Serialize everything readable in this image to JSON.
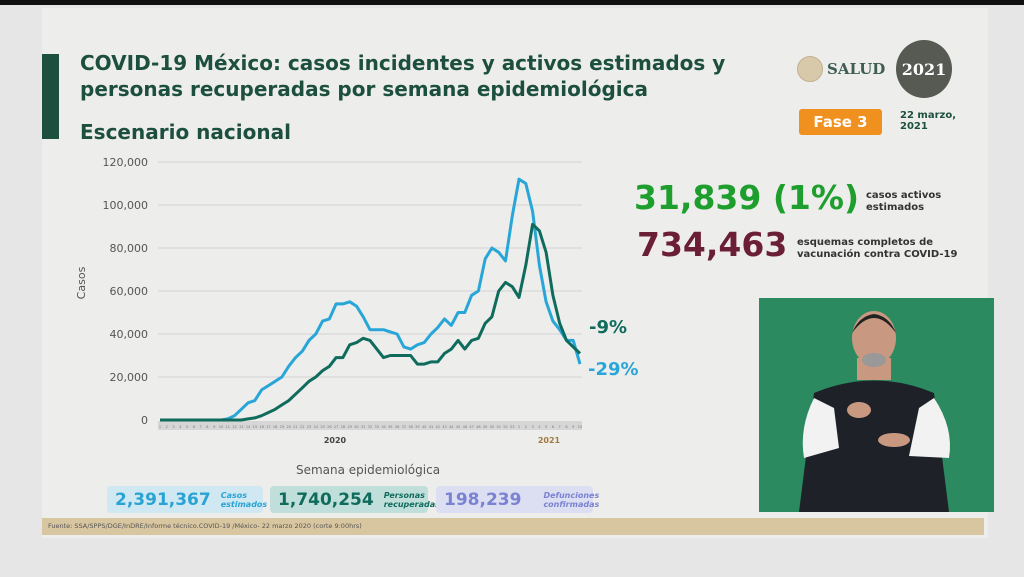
{
  "header": {
    "title_line1": "COVID-19 México: casos incidentes y activos estimados y",
    "title_line2": "personas recuperadas por semana epidemiológica",
    "subtitle": "Escenario nacional",
    "logo_salud": "SALUD",
    "logo_2021": "2021",
    "phase": "Fase 3",
    "date_line1": "22 marzo,",
    "date_line2": "2021"
  },
  "kpis": {
    "active": {
      "value": "31,839 (1%)",
      "label_line1": "casos activos",
      "label_line2": "estimados",
      "color": "#1e9e2d"
    },
    "vaccination": {
      "value": "734,463",
      "label_line1": "esquemas completos de",
      "label_line2": "vacunación contra COVID-19",
      "color": "#6b1f37"
    }
  },
  "summary": [
    {
      "value": "2,391,367",
      "label_line1": "Casos",
      "label_line2": "estimados",
      "color": "#2aa3d4"
    },
    {
      "value": "1,740,254",
      "label_line1": "Personas",
      "label_line2": "recuperadas",
      "color": "#0f6b5c"
    },
    {
      "value": "198,239",
      "label_line1": "Defunciones",
      "label_line2": "confirmadas",
      "color": "#7a82d2"
    }
  ],
  "footer": "Fuente: SSA/SPPS/DGE/InDRE/Informe técnico.COVID-19 /México- 22 marzo 2020 (corte 9:00hrs)",
  "chart_data": {
    "type": "line",
    "xlabel": "Semana epidemiológica",
    "ylabel": "Casos",
    "ylim": [
      0,
      120000
    ],
    "yticks": [
      "0",
      "20,000",
      "40,000",
      "60,000",
      "80,000",
      "100,000",
      "120,000"
    ],
    "grid": true,
    "year_labels": [
      "2020",
      "2021"
    ],
    "x": [
      "1",
      "2",
      "3",
      "4",
      "5",
      "6",
      "7",
      "8",
      "9",
      "10",
      "11",
      "12",
      "13",
      "14",
      "15",
      "16",
      "17",
      "18",
      "19",
      "20",
      "21",
      "22",
      "23",
      "24",
      "25",
      "26",
      "27",
      "28",
      "29",
      "30",
      "31",
      "32",
      "33",
      "34",
      "35",
      "36",
      "37",
      "38",
      "39",
      "40",
      "41",
      "42",
      "43",
      "44",
      "45",
      "46",
      "47",
      "48",
      "49",
      "50",
      "51",
      "52",
      "53",
      "1",
      "2",
      "3",
      "4",
      "5",
      "6",
      "7",
      "8",
      "9",
      "10"
    ],
    "series": [
      {
        "color": "#29a6d8",
        "end_label": "-29%",
        "values": [
          0,
          0,
          0,
          0,
          0,
          0,
          0,
          0,
          0,
          0,
          500,
          2000,
          5000,
          8000,
          9000,
          14000,
          16000,
          18000,
          20000,
          25000,
          29000,
          32000,
          37000,
          40000,
          46000,
          47000,
          54000,
          54000,
          55000,
          53000,
          48000,
          42000,
          42000,
          42000,
          41000,
          40000,
          34000,
          33000,
          35000,
          36000,
          40000,
          43000,
          47000,
          44000,
          50000,
          50000,
          58000,
          60000,
          75000,
          80000,
          78000,
          74000,
          95000,
          112000,
          110000,
          97000,
          72000,
          55000,
          46000,
          42000,
          37000,
          37000,
          26000
        ]
      },
      {
        "color": "#0f6b5c",
        "end_label": "-9%",
        "values": [
          0,
          0,
          0,
          0,
          0,
          0,
          0,
          0,
          0,
          0,
          0,
          0,
          0,
          500,
          1000,
          2000,
          3500,
          5000,
          7000,
          9000,
          12000,
          15000,
          18000,
          20000,
          23000,
          25000,
          29000,
          29000,
          35000,
          36000,
          38000,
          37000,
          33000,
          29000,
          30000,
          30000,
          30000,
          30000,
          26000,
          26000,
          27000,
          27000,
          31000,
          33000,
          37000,
          33000,
          37000,
          38000,
          45000,
          48000,
          60000,
          64000,
          62000,
          57000,
          72000,
          91000,
          88000,
          78000,
          58000,
          45000,
          37000,
          34000,
          31000
        ]
      }
    ]
  }
}
